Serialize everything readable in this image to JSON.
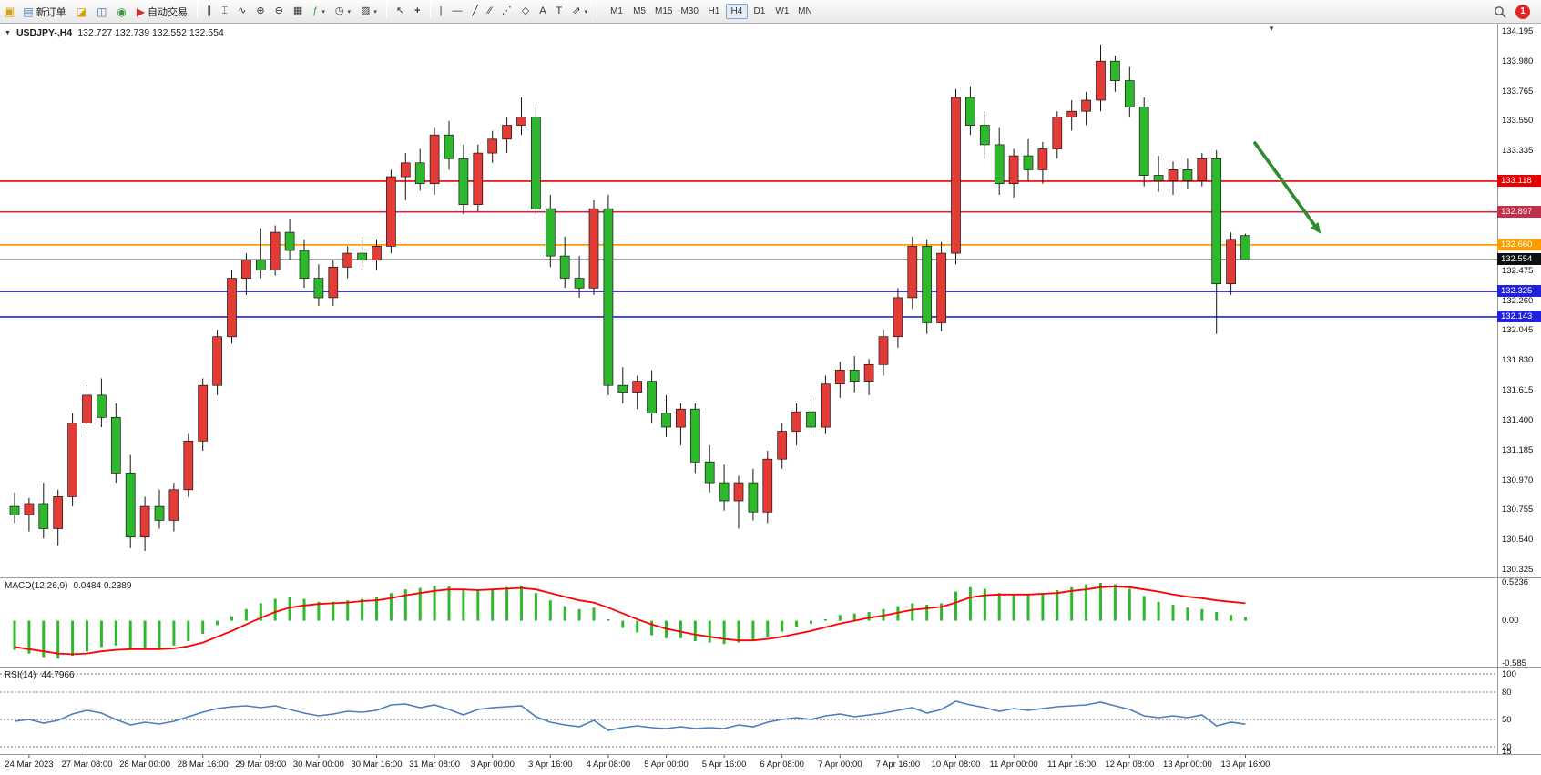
{
  "toolbar": {
    "new_order": "新订单",
    "autotrading": "自动交易",
    "timeframes": [
      "M1",
      "M5",
      "M15",
      "M30",
      "H1",
      "H4",
      "D1",
      "W1",
      "MN"
    ],
    "active_timeframe": "H4",
    "notification_count": "1"
  },
  "chart_header": {
    "symbol": "USDJPY-,H4",
    "ohlc": "132.727 132.739 132.552 132.554"
  },
  "panels": {
    "macd_label": "MACD(12,26,9)",
    "macd_values": "0.0484 0.2389",
    "rsi_label": "RSI(14)",
    "rsi_value": "44.7966"
  },
  "chart_data": [
    {
      "type": "candlestick",
      "title": "USDJPY-,H4",
      "ylim": [
        130.27,
        134.25
      ],
      "y_ticks": [
        "134.195",
        "133.980",
        "133.765",
        "133.550",
        "133.335",
        "132.475",
        "132.260",
        "132.045",
        "131.830",
        "131.615",
        "131.400",
        "131.185",
        "130.970",
        "130.755",
        "130.540",
        "130.325"
      ],
      "x_labels": [
        {
          "i": 1,
          "label": "24 Mar 2023"
        },
        {
          "i": 5,
          "label": "27 Mar 08:00"
        },
        {
          "i": 9,
          "label": "28 Mar 00:00"
        },
        {
          "i": 13,
          "label": "28 Mar 16:00"
        },
        {
          "i": 17,
          "label": "29 Mar 08:00"
        },
        {
          "i": 21,
          "label": "30 Mar 00:00"
        },
        {
          "i": 25,
          "label": "30 Mar 16:00"
        },
        {
          "i": 29,
          "label": "31 Mar 08:00"
        },
        {
          "i": 33,
          "label": "3 Apr 00:00"
        },
        {
          "i": 37,
          "label": "3 Apr 16:00"
        },
        {
          "i": 41,
          "label": "4 Apr 08:00"
        },
        {
          "i": 45,
          "label": "5 Apr 00:00"
        },
        {
          "i": 49,
          "label": "5 Apr 16:00"
        },
        {
          "i": 53,
          "label": "6 Apr 08:00"
        },
        {
          "i": 57,
          "label": "7 Apr 00:00"
        },
        {
          "i": 61,
          "label": "7 Apr 16:00"
        },
        {
          "i": 65,
          "label": "10 Apr 08:00"
        },
        {
          "i": 69,
          "label": "11 Apr 00:00"
        },
        {
          "i": 73,
          "label": "11 Apr 16:00"
        },
        {
          "i": 77,
          "label": "12 Apr 08:00"
        },
        {
          "i": 81,
          "label": "13 Apr 00:00"
        },
        {
          "i": 85,
          "label": "13 Apr 16:00"
        }
      ],
      "candles": [
        [
          130.78,
          130.88,
          130.66,
          130.72
        ],
        [
          130.72,
          130.84,
          130.6,
          130.8
        ],
        [
          130.8,
          130.95,
          130.55,
          130.62
        ],
        [
          130.62,
          130.9,
          130.5,
          130.85
        ],
        [
          130.85,
          131.45,
          130.78,
          131.38
        ],
        [
          131.38,
          131.65,
          131.3,
          131.58
        ],
        [
          131.58,
          131.7,
          131.35,
          131.42
        ],
        [
          131.42,
          131.52,
          130.95,
          131.02
        ],
        [
          131.02,
          131.15,
          130.48,
          130.56
        ],
        [
          130.56,
          130.85,
          130.46,
          130.78
        ],
        [
          130.78,
          130.9,
          130.62,
          130.68
        ],
        [
          130.68,
          130.95,
          130.6,
          130.9
        ],
        [
          130.9,
          131.3,
          130.85,
          131.25
        ],
        [
          131.25,
          131.7,
          131.18,
          131.65
        ],
        [
          131.65,
          132.05,
          131.58,
          132.0
        ],
        [
          132.0,
          132.48,
          131.95,
          132.42
        ],
        [
          132.42,
          132.6,
          132.3,
          132.55
        ],
        [
          132.55,
          132.78,
          132.42,
          132.48
        ],
        [
          132.48,
          132.8,
          132.44,
          132.75
        ],
        [
          132.75,
          132.85,
          132.55,
          132.62
        ],
        [
          132.62,
          132.7,
          132.35,
          132.42
        ],
        [
          132.42,
          132.52,
          132.22,
          132.28
        ],
        [
          132.28,
          132.55,
          132.22,
          132.5
        ],
        [
          132.5,
          132.65,
          132.42,
          132.6
        ],
        [
          132.6,
          132.72,
          132.5,
          132.55
        ],
        [
          132.55,
          132.7,
          132.48,
          132.65
        ],
        [
          132.65,
          133.2,
          132.6,
          133.15
        ],
        [
          133.15,
          133.32,
          132.98,
          133.25
        ],
        [
          133.25,
          133.35,
          133.05,
          133.1
        ],
        [
          133.1,
          133.5,
          133.02,
          133.45
        ],
        [
          133.45,
          133.55,
          133.2,
          133.28
        ],
        [
          133.28,
          133.38,
          132.88,
          132.95
        ],
        [
          132.95,
          133.38,
          132.9,
          133.32
        ],
        [
          133.32,
          133.48,
          133.25,
          133.42
        ],
        [
          133.42,
          133.58,
          133.32,
          133.52
        ],
        [
          133.52,
          133.72,
          133.45,
          133.58
        ],
        [
          133.58,
          133.65,
          132.85,
          132.92
        ],
        [
          132.92,
          133.02,
          132.5,
          132.58
        ],
        [
          132.58,
          132.72,
          132.35,
          132.42
        ],
        [
          132.42,
          132.58,
          132.28,
          132.35
        ],
        [
          132.35,
          132.98,
          132.3,
          132.92
        ],
        [
          132.92,
          133.02,
          131.58,
          131.65
        ],
        [
          131.65,
          131.78,
          131.52,
          131.6
        ],
        [
          131.6,
          131.72,
          131.48,
          131.68
        ],
        [
          131.68,
          131.76,
          131.38,
          131.45
        ],
        [
          131.45,
          131.58,
          131.28,
          131.35
        ],
        [
          131.35,
          131.52,
          131.22,
          131.48
        ],
        [
          131.48,
          131.52,
          131.02,
          131.1
        ],
        [
          131.1,
          131.22,
          130.88,
          130.95
        ],
        [
          130.95,
          131.08,
          130.75,
          130.82
        ],
        [
          130.82,
          131.0,
          130.62,
          130.95
        ],
        [
          130.95,
          131.05,
          130.68,
          130.74
        ],
        [
          130.74,
          131.18,
          130.66,
          131.12
        ],
        [
          131.12,
          131.38,
          131.05,
          131.32
        ],
        [
          131.32,
          131.52,
          131.22,
          131.46
        ],
        [
          131.46,
          131.58,
          131.28,
          131.35
        ],
        [
          131.35,
          131.72,
          131.3,
          131.66
        ],
        [
          131.66,
          131.82,
          131.56,
          131.76
        ],
        [
          131.76,
          131.86,
          131.6,
          131.68
        ],
        [
          131.68,
          131.84,
          131.58,
          131.8
        ],
        [
          131.8,
          132.05,
          131.72,
          132.0
        ],
        [
          132.0,
          132.35,
          131.92,
          132.28
        ],
        [
          132.28,
          132.72,
          132.2,
          132.65
        ],
        [
          132.65,
          132.7,
          132.02,
          132.1
        ],
        [
          132.1,
          132.68,
          132.04,
          132.6
        ],
        [
          132.6,
          133.78,
          132.52,
          133.72
        ],
        [
          133.72,
          133.8,
          133.45,
          133.52
        ],
        [
          133.52,
          133.62,
          133.28,
          133.38
        ],
        [
          133.38,
          133.5,
          133.02,
          133.1
        ],
        [
          133.1,
          133.35,
          133.0,
          133.3
        ],
        [
          133.3,
          133.42,
          133.12,
          133.2
        ],
        [
          133.2,
          133.4,
          133.1,
          133.35
        ],
        [
          133.35,
          133.62,
          133.28,
          133.58
        ],
        [
          133.58,
          133.7,
          133.48,
          133.62
        ],
        [
          133.62,
          133.76,
          133.52,
          133.7
        ],
        [
          133.7,
          134.1,
          133.62,
          133.98
        ],
        [
          133.98,
          134.02,
          133.76,
          133.84
        ],
        [
          133.84,
          133.94,
          133.58,
          133.65
        ],
        [
          133.65,
          133.72,
          133.08,
          133.16
        ],
        [
          133.16,
          133.3,
          133.04,
          133.12
        ],
        [
          133.12,
          133.26,
          133.02,
          133.2
        ],
        [
          133.2,
          133.28,
          133.06,
          133.12
        ],
        [
          133.12,
          133.32,
          133.08,
          133.28
        ],
        [
          133.28,
          133.34,
          132.02,
          132.38
        ],
        [
          132.38,
          132.75,
          132.3,
          132.7
        ],
        [
          132.727,
          132.739,
          132.552,
          132.554
        ]
      ],
      "hlines": [
        {
          "price": 133.118,
          "label": "133.118",
          "color": "#e80000",
          "w": 1.6
        },
        {
          "price": 132.897,
          "label": "132.897",
          "color": "#c0304a",
          "w": 1.6
        },
        {
          "price": 132.66,
          "label": "132.660",
          "color": "#ff9d00",
          "w": 1.8
        },
        {
          "price": 132.554,
          "label": "132.554",
          "color": "#101010",
          "w": 1.0
        },
        {
          "price": 132.325,
          "label": "132.325",
          "color": "#2222dd",
          "w": 1.6
        },
        {
          "price": 132.143,
          "label": "132.143",
          "color": "#2222dd",
          "w": 1.6
        }
      ],
      "colors": {
        "bull": "#e33c36",
        "bear": "#2eb82e",
        "outline": "#151515"
      },
      "annotation_arrow": {
        "i1": 85.6,
        "p1": 133.4,
        "i2": 90.2,
        "p2": 132.74,
        "color": "#2e8b2e"
      }
    },
    {
      "type": "bar",
      "name": "MACD",
      "ylim": [
        -0.63,
        0.57
      ],
      "y_ticks": [
        {
          "v": 0.5236,
          "label": "0.5236"
        },
        {
          "v": 0.0,
          "label": "0.00"
        },
        {
          "v": -0.585,
          "label": "-0.585"
        }
      ],
      "histogram": [
        -0.4,
        -0.45,
        -0.5,
        -0.52,
        -0.48,
        -0.42,
        -0.36,
        -0.34,
        -0.38,
        -0.4,
        -0.38,
        -0.34,
        -0.28,
        -0.18,
        -0.06,
        0.06,
        0.16,
        0.24,
        0.3,
        0.32,
        0.3,
        0.26,
        0.26,
        0.28,
        0.3,
        0.32,
        0.38,
        0.43,
        0.45,
        0.48,
        0.47,
        0.42,
        0.42,
        0.44,
        0.46,
        0.47,
        0.38,
        0.28,
        0.2,
        0.16,
        0.18,
        0.02,
        -0.1,
        -0.16,
        -0.2,
        -0.24,
        -0.24,
        -0.28,
        -0.3,
        -0.32,
        -0.3,
        -0.28,
        -0.22,
        -0.15,
        -0.08,
        -0.04,
        0.02,
        0.08,
        0.1,
        0.12,
        0.16,
        0.2,
        0.24,
        0.22,
        0.24,
        0.4,
        0.46,
        0.44,
        0.38,
        0.36,
        0.36,
        0.38,
        0.42,
        0.46,
        0.5,
        0.52,
        0.5,
        0.44,
        0.34,
        0.26,
        0.22,
        0.18,
        0.16,
        0.12,
        0.08,
        0.05
      ],
      "signal": [
        -0.36,
        -0.39,
        -0.42,
        -0.45,
        -0.46,
        -0.45,
        -0.42,
        -0.4,
        -0.39,
        -0.39,
        -0.39,
        -0.38,
        -0.35,
        -0.3,
        -0.22,
        -0.14,
        -0.05,
        0.04,
        0.12,
        0.18,
        0.21,
        0.23,
        0.24,
        0.25,
        0.27,
        0.28,
        0.31,
        0.35,
        0.38,
        0.41,
        0.43,
        0.43,
        0.42,
        0.43,
        0.44,
        0.45,
        0.43,
        0.38,
        0.33,
        0.28,
        0.25,
        0.18,
        0.1,
        0.02,
        -0.05,
        -0.11,
        -0.15,
        -0.19,
        -0.22,
        -0.25,
        -0.27,
        -0.27,
        -0.25,
        -0.22,
        -0.18,
        -0.14,
        -0.09,
        -0.04,
        0.0,
        0.04,
        0.07,
        0.11,
        0.15,
        0.17,
        0.19,
        0.25,
        0.32,
        0.35,
        0.36,
        0.36,
        0.36,
        0.37,
        0.38,
        0.41,
        0.43,
        0.46,
        0.47,
        0.46,
        0.43,
        0.4,
        0.36,
        0.33,
        0.31,
        0.28,
        0.26,
        0.24
      ],
      "colors": {
        "hist": "#2eb82e",
        "signal": "#ff0000"
      }
    },
    {
      "type": "line",
      "name": "RSI",
      "ylim": [
        12,
        106
      ],
      "levels": [
        100,
        80,
        50,
        20
      ],
      "y_ticks": [
        {
          "v": 100,
          "label": "100"
        },
        {
          "v": 80,
          "label": "80"
        },
        {
          "v": 50,
          "label": "50"
        },
        {
          "v": 20,
          "label": "20"
        },
        {
          "v": 15,
          "label": "15"
        }
      ],
      "values": [
        48,
        50,
        46,
        49,
        56,
        60,
        57,
        50,
        44,
        47,
        45,
        48,
        53,
        58,
        62,
        64,
        65,
        63,
        65,
        61,
        57,
        54,
        56,
        59,
        58,
        60,
        66,
        67,
        63,
        66,
        61,
        55,
        61,
        63,
        64,
        65,
        53,
        47,
        44,
        42,
        49,
        38,
        41,
        43,
        41,
        40,
        42,
        40,
        41,
        40,
        44,
        42,
        47,
        50,
        52,
        50,
        54,
        56,
        53,
        55,
        57,
        60,
        63,
        57,
        61,
        70,
        66,
        63,
        59,
        62,
        60,
        62,
        64,
        65,
        66,
        69,
        65,
        61,
        54,
        52,
        54,
        52,
        55,
        43,
        47,
        44.8
      ],
      "color": "#4a7ebc"
    }
  ]
}
